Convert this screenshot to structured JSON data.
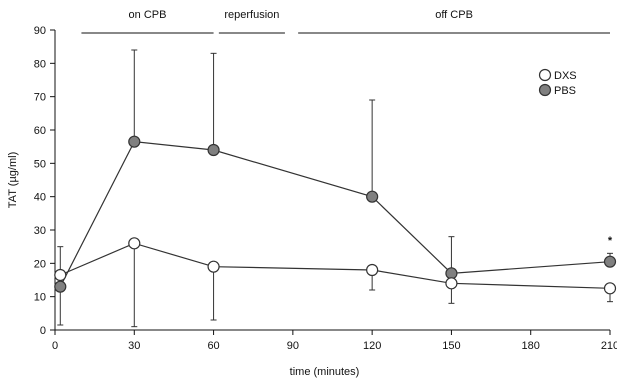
{
  "chart_data": {
    "type": "line",
    "xlabel": "time (minutes)",
    "ylabel": "TAT (µg/ml)",
    "xlim": [
      0,
      210
    ],
    "ylim": [
      0,
      90
    ],
    "xticks": [
      0,
      30,
      60,
      90,
      120,
      150,
      180,
      210
    ],
    "yticks": [
      0,
      10,
      20,
      30,
      40,
      50,
      60,
      70,
      80,
      90
    ],
    "grid": false,
    "legend_position": "top-right",
    "phases": [
      {
        "label": "on CPB",
        "start": 10,
        "end": 60
      },
      {
        "label": "reperfusion",
        "start": 62,
        "end": 87
      },
      {
        "label": "off CPB",
        "start": 92,
        "end": 210
      }
    ],
    "series": [
      {
        "name": "DXS",
        "marker": "open-circle",
        "color": "#ffffff",
        "x": [
          2,
          30,
          60,
          120,
          150,
          210
        ],
        "y": [
          16.5,
          26,
          19,
          18,
          14,
          12.5
        ],
        "err_low": [
          15,
          25,
          16,
          6,
          6,
          4
        ],
        "err_high": [
          8.5,
          0,
          0,
          0,
          0,
          0
        ]
      },
      {
        "name": "PBS",
        "marker": "filled-circle",
        "color": "#808080",
        "x": [
          2,
          30,
          60,
          120,
          150,
          210
        ],
        "y": [
          13,
          56.5,
          54,
          40,
          17,
          20.5
        ],
        "err_low": [
          0,
          0,
          0,
          0,
          0,
          0
        ],
        "err_high": [
          0,
          27.5,
          29,
          29,
          11,
          2.5
        ]
      }
    ],
    "annotations": [
      {
        "text": "*",
        "x": 210,
        "y": 27
      }
    ]
  }
}
